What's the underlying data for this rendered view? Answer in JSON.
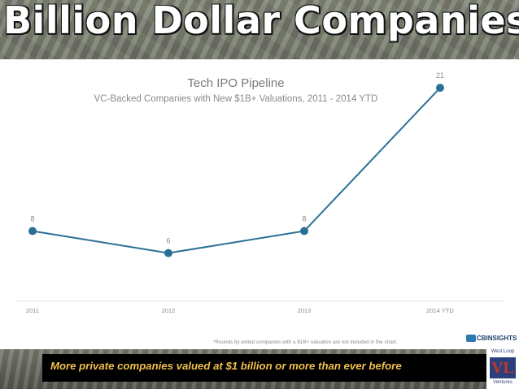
{
  "slide": {
    "title": "Billion Dollar Companies",
    "caption": "More private companies valued at $1 billion or more than ever before",
    "footnote": "*Rounds by exited companies with a $1B+ valuation are not included in the chart.",
    "source_logo": "CBINSIGHTS",
    "logo": {
      "top": "West Loop",
      "mark": "VL",
      "bottom": "Ventures"
    }
  },
  "colors": {
    "line": "#2a6f97",
    "point": "#2a6f97",
    "title_text": "#ffffff",
    "caption_text": "#f2c14e"
  },
  "chart_data": {
    "type": "line",
    "title": "Tech IPO Pipeline",
    "subtitle": "VC-Backed Companies with New $1B+ Valuations, 2011 - 2014 YTD",
    "categories": [
      "2011",
      "2012",
      "2013",
      "2014 YTD"
    ],
    "series": [
      {
        "values": [
          8,
          6,
          8,
          21
        ],
        "data_labels": [
          "8",
          "6",
          "8",
          "21"
        ]
      }
    ],
    "ylim": [
      0,
      23
    ],
    "grid": false,
    "legend": "none"
  }
}
